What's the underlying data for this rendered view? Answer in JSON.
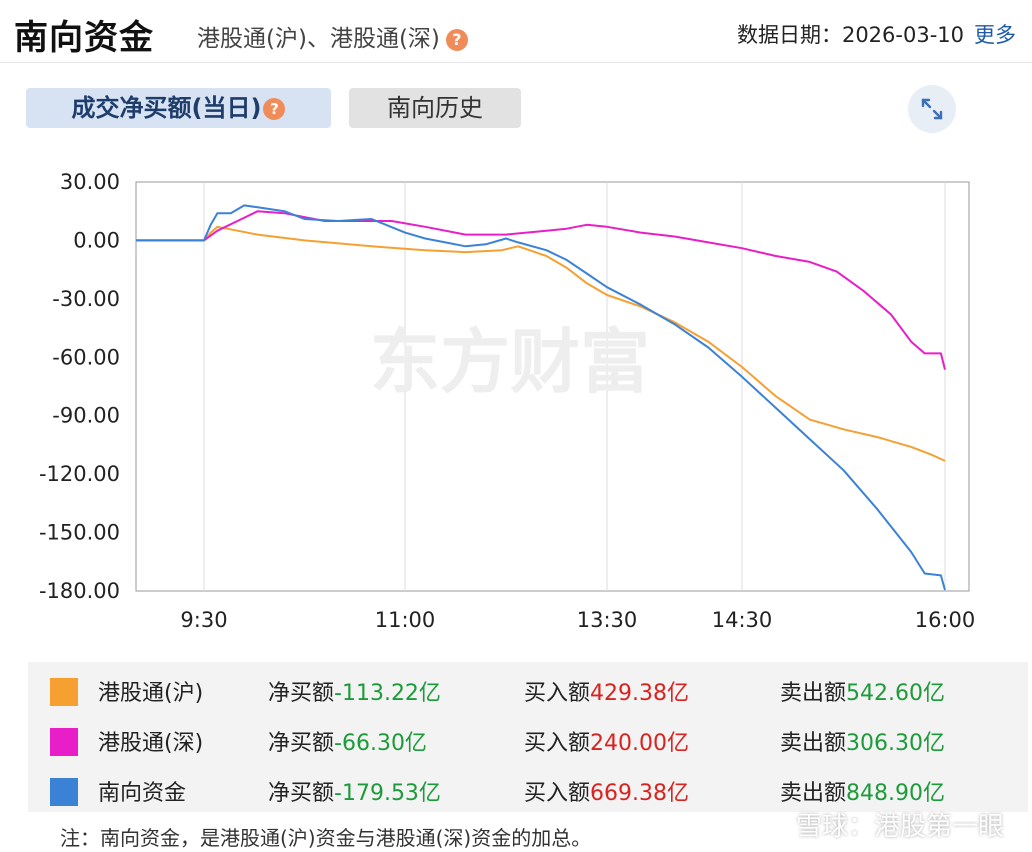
{
  "header": {
    "title": "南向资金",
    "subtitle": "港股通(沪)、港股通(深)",
    "help": "?",
    "date_label": "数据日期：",
    "date": "2026-03-10",
    "more": "更多"
  },
  "tabs": [
    {
      "label": "成交净买额(当日)",
      "active": true
    },
    {
      "label": "南向历史",
      "active": false
    }
  ],
  "icons": {
    "expand": "expand-icon",
    "help": "question-icon"
  },
  "watermark": "东方财富",
  "corner_watermark": "雪球：港股第一眼",
  "chart_data": {
    "type": "line",
    "ylim": [
      -180,
      30
    ],
    "y_ticks": [
      "30.00",
      "0.00",
      "-30.00",
      "-60.00",
      "-90.00",
      "-120.00",
      "-150.00",
      "-180.00"
    ],
    "x_ticks": [
      "9:30",
      "11:00",
      "13:30",
      "14:30",
      "16:00"
    ],
    "series": [
      {
        "name": "港股通(沪)",
        "color": "#f5a031",
        "points": [
          [
            9.0,
            0
          ],
          [
            9.5,
            0
          ],
          [
            9.55,
            4
          ],
          [
            9.6,
            7
          ],
          [
            9.75,
            5
          ],
          [
            9.9,
            3
          ],
          [
            10.25,
            0
          ],
          [
            10.75,
            -3
          ],
          [
            11.25,
            -5
          ],
          [
            11.75,
            -6
          ],
          [
            12.2,
            -5
          ],
          [
            12.4,
            -3
          ],
          [
            12.75,
            -8
          ],
          [
            13.0,
            -14
          ],
          [
            13.25,
            -22
          ],
          [
            13.5,
            -28
          ],
          [
            13.75,
            -34
          ],
          [
            14.0,
            -42
          ],
          [
            14.25,
            -52
          ],
          [
            14.5,
            -65
          ],
          [
            14.75,
            -80
          ],
          [
            15.0,
            -92
          ],
          [
            15.25,
            -97
          ],
          [
            15.5,
            -101
          ],
          [
            15.75,
            -106
          ],
          [
            15.9,
            -110
          ],
          [
            16.0,
            -113.22
          ]
        ]
      },
      {
        "name": "港股通(深)",
        "color": "#e81ec8",
        "points": [
          [
            9.0,
            0
          ],
          [
            9.5,
            0
          ],
          [
            9.6,
            5
          ],
          [
            9.75,
            10
          ],
          [
            9.9,
            15
          ],
          [
            10.1,
            14
          ],
          [
            10.4,
            10
          ],
          [
            10.9,
            10
          ],
          [
            11.25,
            7
          ],
          [
            11.75,
            3
          ],
          [
            12.25,
            3
          ],
          [
            12.75,
            5
          ],
          [
            13.0,
            6
          ],
          [
            13.25,
            8
          ],
          [
            13.5,
            7
          ],
          [
            13.75,
            4
          ],
          [
            14.0,
            2
          ],
          [
            14.25,
            -1
          ],
          [
            14.5,
            -4
          ],
          [
            14.75,
            -8
          ],
          [
            15.0,
            -11
          ],
          [
            15.2,
            -16
          ],
          [
            15.4,
            -26
          ],
          [
            15.6,
            -38
          ],
          [
            15.75,
            -52
          ],
          [
            15.85,
            -58
          ],
          [
            15.97,
            -58
          ],
          [
            16.0,
            -66.3
          ]
        ]
      },
      {
        "name": "南向资金",
        "color": "#3b82d6",
        "points": [
          [
            9.0,
            0
          ],
          [
            9.5,
            0
          ],
          [
            9.55,
            8
          ],
          [
            9.6,
            14
          ],
          [
            9.7,
            14
          ],
          [
            9.8,
            18
          ],
          [
            9.9,
            17
          ],
          [
            10.1,
            15
          ],
          [
            10.25,
            11
          ],
          [
            10.5,
            10
          ],
          [
            10.75,
            11
          ],
          [
            11.0,
            4
          ],
          [
            11.25,
            1
          ],
          [
            11.5,
            -1
          ],
          [
            11.75,
            -3
          ],
          [
            12.0,
            -2
          ],
          [
            12.25,
            1
          ],
          [
            12.4,
            -1
          ],
          [
            12.75,
            -5
          ],
          [
            13.0,
            -10
          ],
          [
            13.25,
            -17
          ],
          [
            13.5,
            -24
          ],
          [
            13.75,
            -33
          ],
          [
            14.0,
            -43
          ],
          [
            14.25,
            -55
          ],
          [
            14.5,
            -70
          ],
          [
            14.75,
            -86
          ],
          [
            15.0,
            -102
          ],
          [
            15.25,
            -118
          ],
          [
            15.5,
            -138
          ],
          [
            15.75,
            -160
          ],
          [
            15.85,
            -171
          ],
          [
            15.97,
            -172
          ],
          [
            16.0,
            -179.53
          ]
        ]
      }
    ]
  },
  "legend": [
    {
      "name": "港股通(沪)",
      "color": "#f5a031",
      "net_label": "净买额",
      "net_value": "-113.22亿",
      "buy_label": "买入额",
      "buy_value": "429.38亿",
      "sell_label": "卖出额",
      "sell_value": "542.60亿"
    },
    {
      "name": "港股通(深)",
      "color": "#e81ec8",
      "net_label": "净买额",
      "net_value": "-66.30亿",
      "buy_label": "买入额",
      "buy_value": "240.00亿",
      "sell_label": "卖出额",
      "sell_value": "306.30亿"
    },
    {
      "name": "南向资金",
      "color": "#3b82d6",
      "net_label": "净买额",
      "net_value": "-179.53亿",
      "buy_label": "买入额",
      "buy_value": "669.38亿",
      "sell_label": "卖出额",
      "sell_value": "848.90亿"
    }
  ],
  "note": "注：南向资金，是港股通(沪)资金与港股通(深)资金的加总。"
}
